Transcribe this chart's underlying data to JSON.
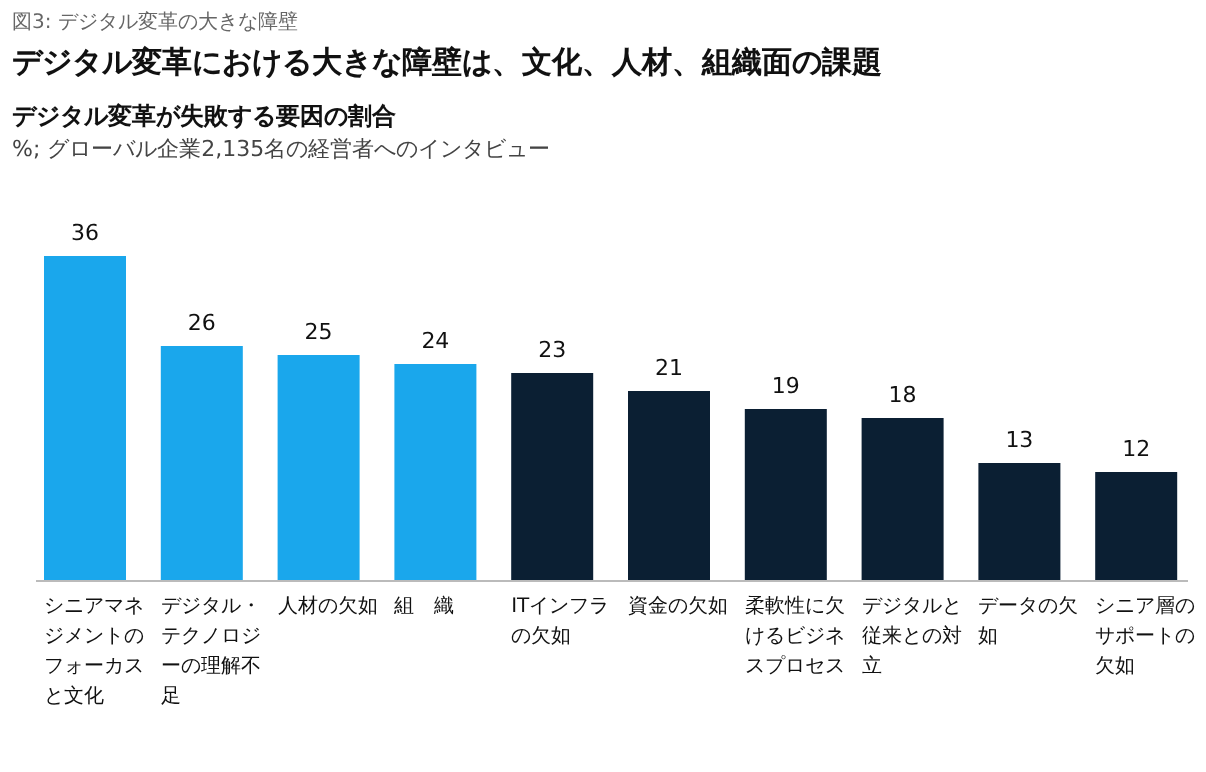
{
  "chart_data": {
    "type": "bar",
    "title": "デジタル変革における大きな障壁は、文化、人材、組織面の課題",
    "subtitle": "デジタル変革が失敗する要因の割合",
    "annotations": [
      "図3: デジタル変革の大きな障壁",
      "%; グローバル企業2,135名の経営者へのインタビュー"
    ],
    "categories": [
      "シニアマネジメントのフォーカスと文化",
      "デジタル・テクノロジーの理解不足",
      "人材の欠如",
      "組　織",
      "ITインフラの欠如",
      "資金の欠如",
      "柔軟性に欠けるビジネスプロセス",
      "デジタルと従来との対立",
      "データの欠如",
      "シニア層のサポートの欠如"
    ],
    "values": [
      36,
      26,
      25,
      24,
      23,
      21,
      19,
      18,
      13,
      12
    ],
    "colors": [
      "#1aa7ec",
      "#1aa7ec",
      "#1aa7ec",
      "#1aa7ec",
      "#0b1f33",
      "#0b1f33",
      "#0b1f33",
      "#0b1f33",
      "#0b1f33",
      "#0b1f33"
    ],
    "data_labels": true
  }
}
